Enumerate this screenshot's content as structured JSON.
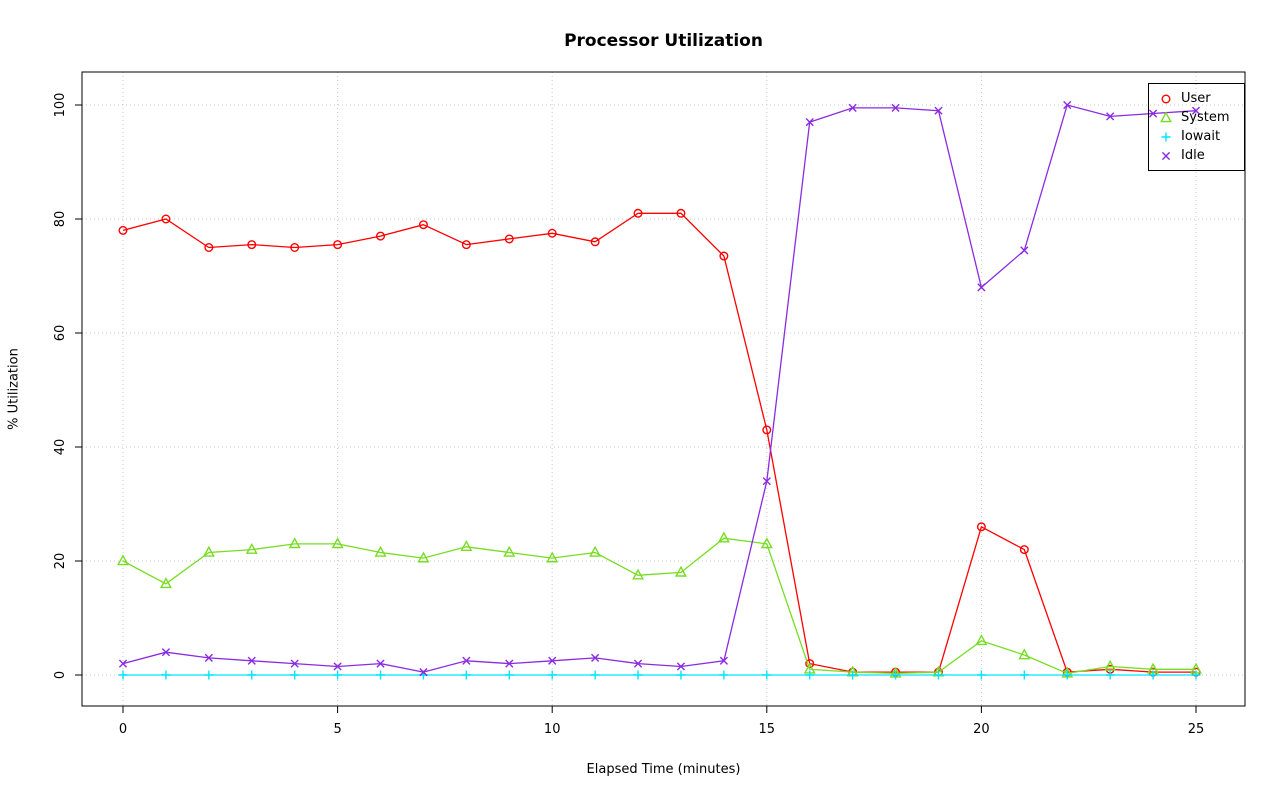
{
  "chart_data": {
    "type": "line",
    "title": "Processor Utilization",
    "xlabel": "Elapsed Time (minutes)",
    "ylabel": "% Utilization",
    "x": [
      0,
      1,
      2,
      3,
      4,
      5,
      6,
      7,
      8,
      9,
      10,
      11,
      12,
      13,
      14,
      15,
      16,
      17,
      18,
      19,
      20,
      21,
      22,
      23,
      24,
      25
    ],
    "xlim": [
      0,
      25
    ],
    "ylim": [
      0,
      100
    ],
    "xticks": [
      0,
      5,
      10,
      15,
      20,
      25
    ],
    "yticks": [
      0,
      20,
      40,
      60,
      80,
      100
    ],
    "grid": true,
    "grid_style": "dotted",
    "legend_position": "top-right",
    "series": [
      {
        "name": "User",
        "color": "#ff0000",
        "marker": "circle",
        "values": [
          78,
          80,
          75,
          75.5,
          75,
          75.5,
          77,
          79,
          75.5,
          76.5,
          77.5,
          76,
          81,
          81,
          73.5,
          43,
          2,
          0.5,
          0.5,
          0.5,
          26,
          22,
          0.5,
          1,
          0.5,
          0.5
        ]
      },
      {
        "name": "System",
        "color": "#77dd22",
        "marker": "triangle",
        "values": [
          20,
          16,
          21.5,
          22,
          23,
          23,
          21.5,
          20.5,
          22.5,
          21.5,
          20.5,
          21.5,
          17.5,
          18,
          24,
          23,
          1,
          0.5,
          0.3,
          0.5,
          6,
          3.5,
          0.3,
          1.5,
          1,
          1
        ]
      },
      {
        "name": "Iowait",
        "color": "#00e5ff",
        "marker": "plus",
        "values": [
          0,
          0,
          0,
          0,
          0,
          0,
          0,
          0,
          0,
          0,
          0,
          0,
          0,
          0,
          0,
          0,
          0,
          0,
          0,
          0,
          0,
          0,
          0,
          0,
          0,
          0
        ]
      },
      {
        "name": "Idle",
        "color": "#8a2be2",
        "marker": "x",
        "values": [
          2,
          4,
          3,
          2.5,
          2,
          1.5,
          2,
          0.5,
          2.5,
          2,
          2.5,
          3,
          2,
          1.5,
          2.5,
          34,
          97,
          99.5,
          99.5,
          99,
          68,
          74.5,
          100,
          98,
          98.5,
          99
        ]
      }
    ]
  }
}
